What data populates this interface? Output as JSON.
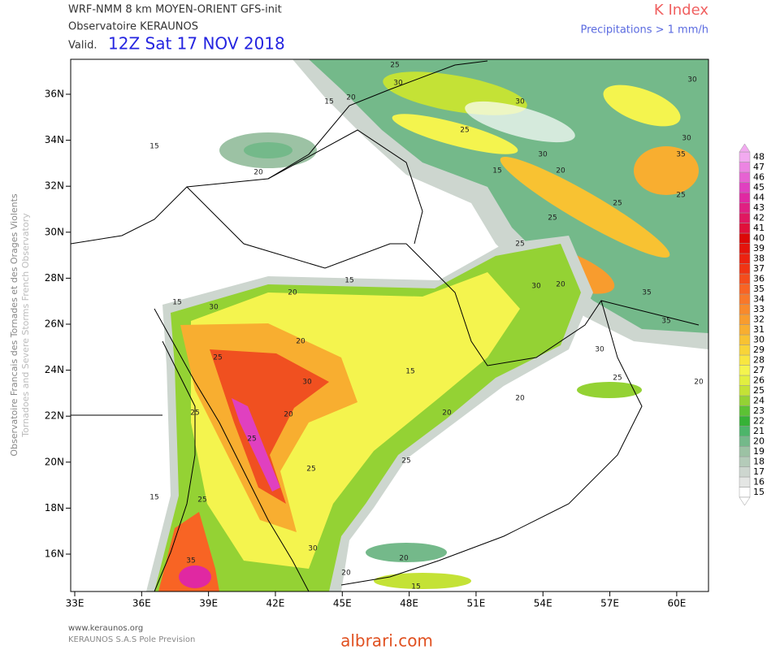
{
  "header": {
    "model": "WRF-NMM 8 km MOYEN-ORIENT   GFS-init",
    "observatory": "Observatoire KERAUNOS",
    "valid_prefix": "Valid.",
    "valid_time": "12Z Sat 17 NOV 2018",
    "parameter": "K Index",
    "precip_note": "Precipitations > 1 mm/h"
  },
  "side": {
    "line1": "Observatoire Francais des Tornades et des Orages Violents",
    "line2": "Tornadoes and Severe Storms French Observatory"
  },
  "map": {
    "lon_ticks": [
      {
        "value": 33,
        "label": "33E"
      },
      {
        "value": 36,
        "label": "36E"
      },
      {
        "value": 39,
        "label": "39E"
      },
      {
        "value": 42,
        "label": "42E"
      },
      {
        "value": 45,
        "label": "45E"
      },
      {
        "value": 48,
        "label": "48E"
      },
      {
        "value": 51,
        "label": "51E"
      },
      {
        "value": 54,
        "label": "54E"
      },
      {
        "value": 57,
        "label": "57E"
      },
      {
        "value": 60,
        "label": "60E"
      }
    ],
    "lat_ticks": [
      {
        "value": 16,
        "label": "16N"
      },
      {
        "value": 18,
        "label": "18N"
      },
      {
        "value": 20,
        "label": "20N"
      },
      {
        "value": 22,
        "label": "22N"
      },
      {
        "value": 24,
        "label": "24N"
      },
      {
        "value": 26,
        "label": "26N"
      },
      {
        "value": 28,
        "label": "28N"
      },
      {
        "value": 30,
        "label": "30N"
      },
      {
        "value": 32,
        "label": "32N"
      },
      {
        "value": 34,
        "label": "34N"
      },
      {
        "value": 36,
        "label": "36N"
      }
    ],
    "contour_labels": [
      15,
      20,
      15,
      20,
      25,
      30,
      30,
      25,
      30,
      20,
      25,
      15,
      25,
      30,
      35,
      35,
      30,
      30,
      35,
      25,
      20,
      25,
      15,
      20,
      30,
      25,
      30,
      20,
      25,
      25,
      20,
      15,
      20,
      25,
      25,
      20,
      15,
      20,
      15,
      25,
      35,
      30,
      15,
      25,
      20,
      30,
      20
    ]
  },
  "legend": {
    "levels": [
      15,
      16,
      17,
      18,
      19,
      20,
      21,
      22,
      23,
      24,
      25,
      26,
      27,
      28,
      29,
      30,
      31,
      32,
      33,
      34,
      35,
      36,
      37,
      38,
      39,
      40,
      41,
      42,
      43,
      44,
      45,
      46,
      47,
      48
    ],
    "colors": [
      "#ffffff",
      "#e4e6e4",
      "#cdd6cf",
      "#b4cbb9",
      "#9cc2a4",
      "#74b98a",
      "#4db56a",
      "#36b236",
      "#5cc234",
      "#94d234",
      "#c4e236",
      "#e2ef40",
      "#f4f44e",
      "#f8e640",
      "#f8d438",
      "#f8c232",
      "#f8ae30",
      "#f89c2e",
      "#f88a2c",
      "#f8782a",
      "#f86424",
      "#f44c1c",
      "#f03414",
      "#ec2210",
      "#e4140c",
      "#dc0808",
      "#e0103a",
      "#e01860",
      "#e02082",
      "#e028a2",
      "#e040c0",
      "#e662d2",
      "#ec84e2",
      "#f2aaf0"
    ]
  },
  "footer": {
    "site": "www.keraunos.org",
    "company": "KERAUNOS S.A.S Pole Prevision",
    "watermark": "albrari.com"
  }
}
